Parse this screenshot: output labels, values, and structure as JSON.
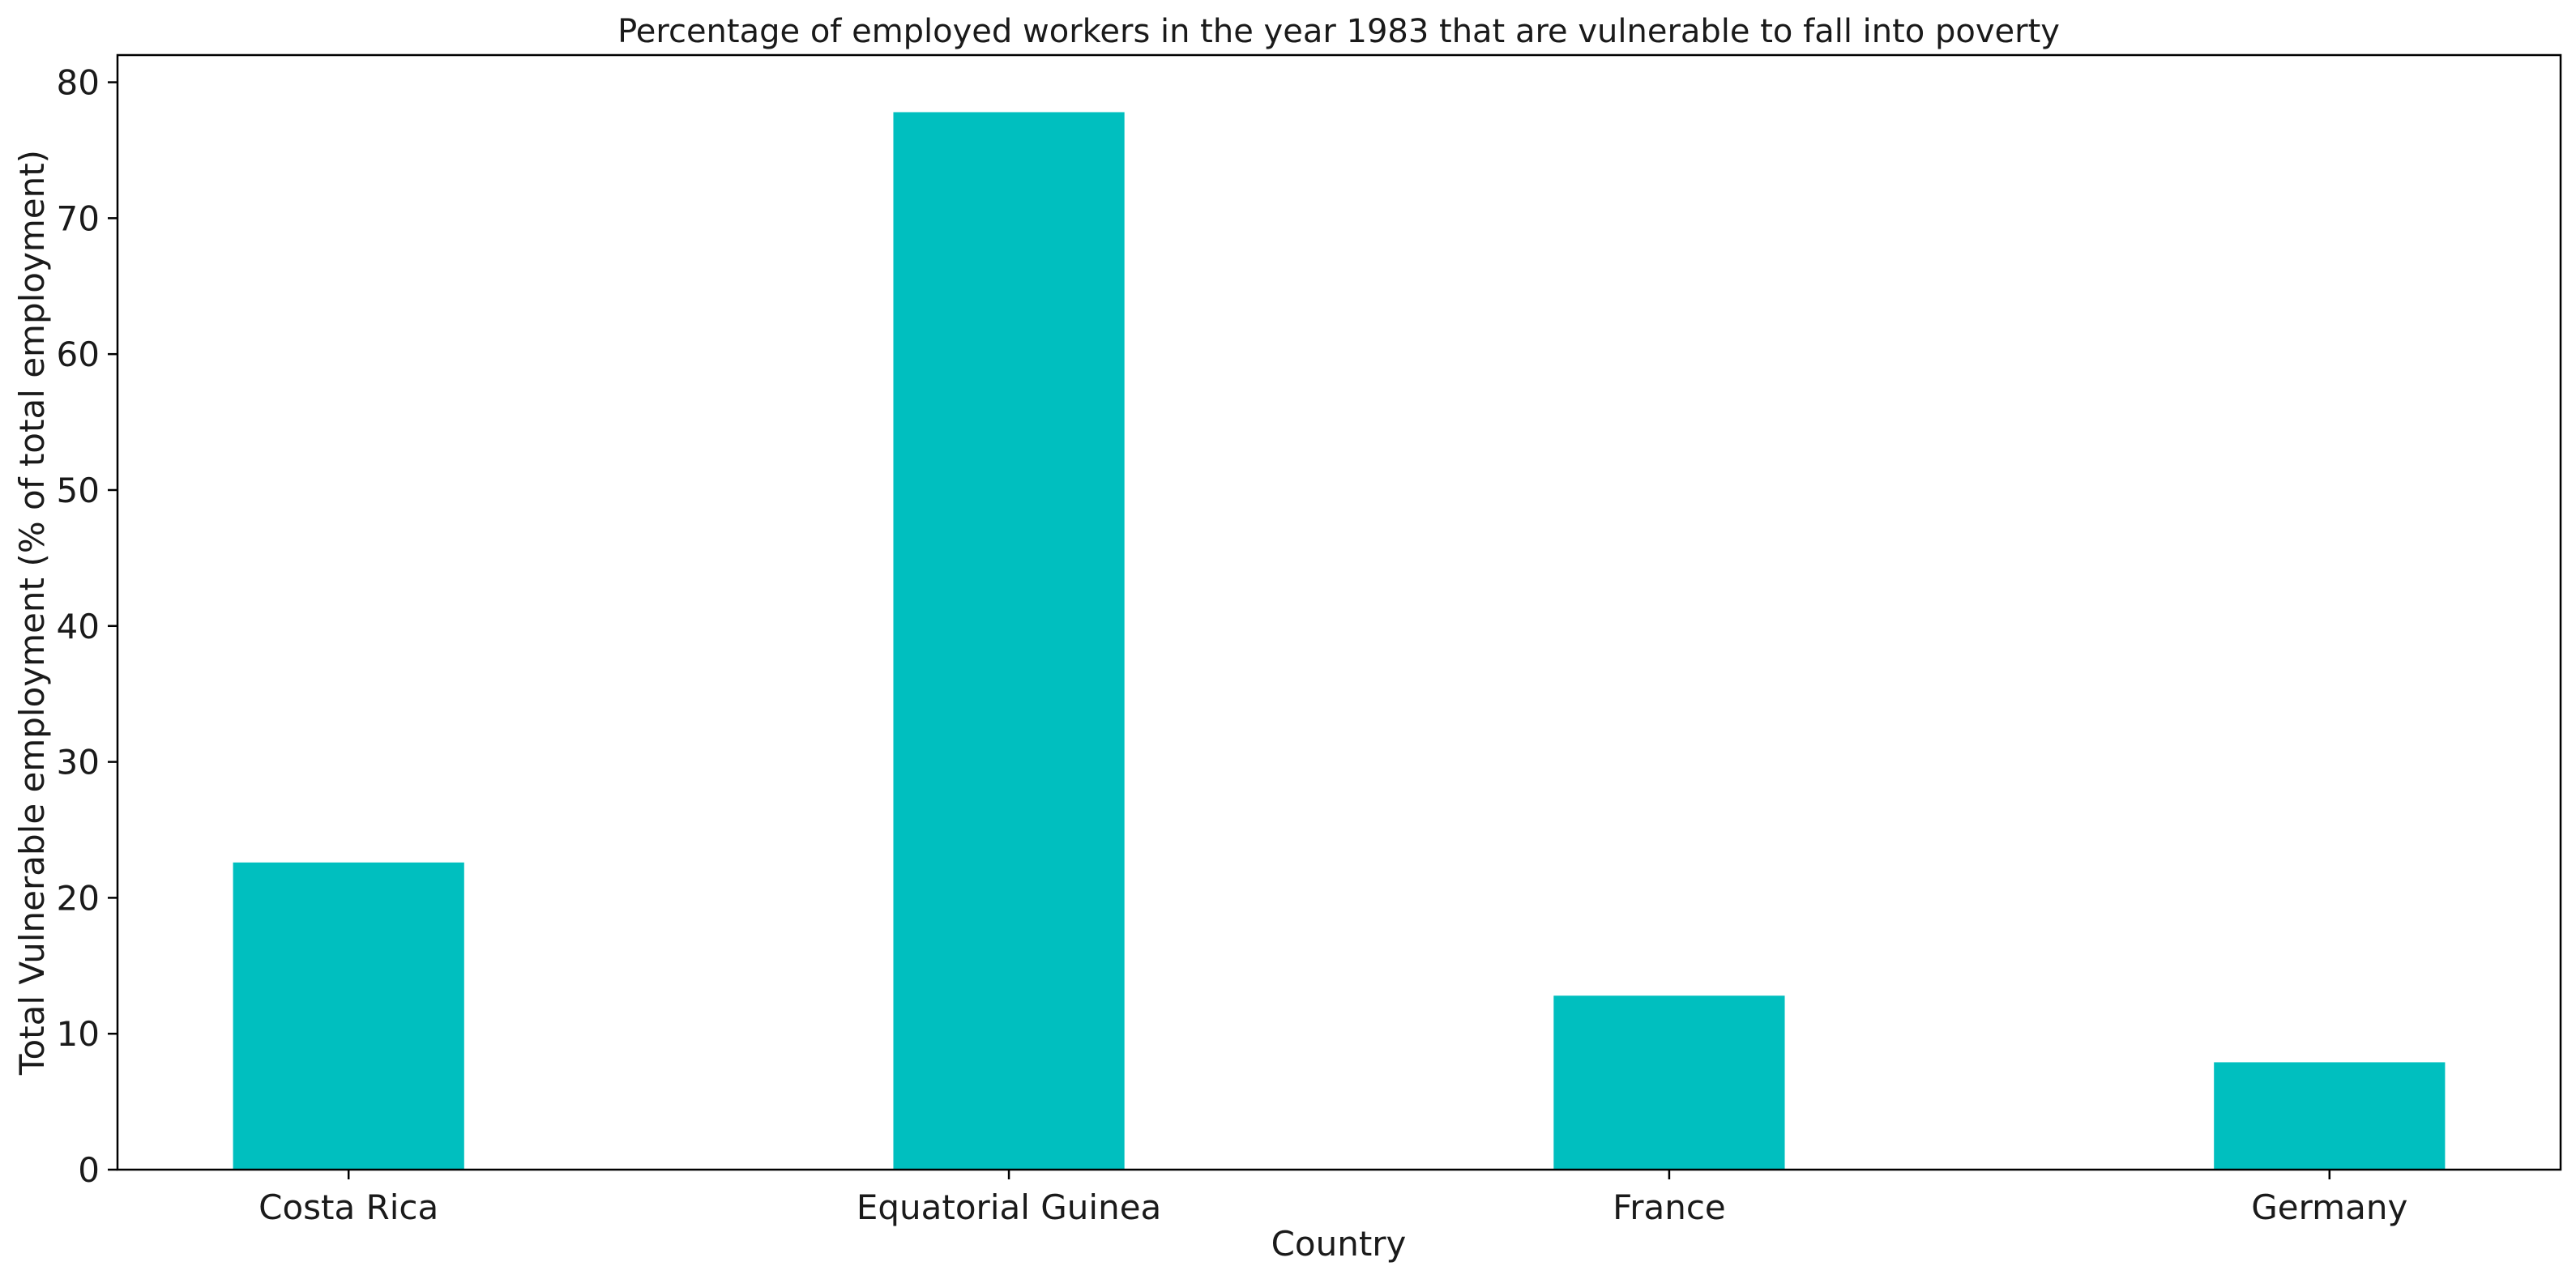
{
  "chart_data": {
    "type": "bar",
    "title": "Percentage of employed workers in the year 1983 that are vulnerable to fall into poverty",
    "xlabel": "Country",
    "ylabel": "Total Vulnerable employment (% of total employment)",
    "categories": [
      "Costa Rica",
      "Equatorial Guinea",
      "France",
      "Germany"
    ],
    "values": [
      22.6,
      77.8,
      12.8,
      7.9
    ],
    "ylim": [
      0,
      82
    ],
    "yticks": [
      "0",
      "10",
      "20",
      "30",
      "40",
      "50",
      "60",
      "70",
      "80"
    ],
    "bar_color": "#00bfbf",
    "grid": false,
    "legend": "none"
  }
}
